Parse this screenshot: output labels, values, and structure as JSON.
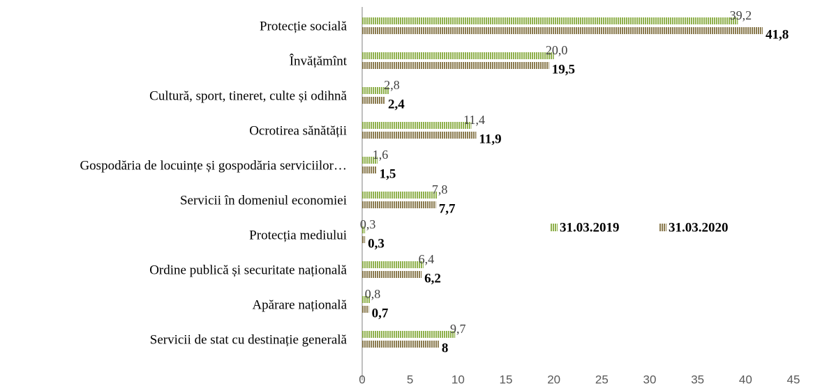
{
  "chart_data": {
    "type": "bar",
    "orientation": "horizontal",
    "categories": [
      "Protecție socială",
      "Învățămînt",
      "Cultură, sport, tineret, culte și odihnă",
      "Ocrotirea sănătății",
      "Gospodăria de locuințe și gospodăria serviciilor…",
      "Servicii în domeniul economiei",
      "Protecția mediului",
      "Ordine publică și securitate națională",
      "Apărare națională",
      "Servicii de stat cu destinație generală"
    ],
    "series": [
      {
        "name": "31.03.2019",
        "color": "#8fb04c",
        "values": [
          39.2,
          20.0,
          2.8,
          11.4,
          1.6,
          7.8,
          0.3,
          6.4,
          0.8,
          9.7
        ],
        "value_labels": [
          "39,2",
          "20,0",
          "2,8",
          "11,4",
          "1,6",
          "7,8",
          "0,3",
          "6,4",
          "0,8",
          "9,7"
        ]
      },
      {
        "name": "31.03.2020",
        "color": "#8a7a4e",
        "values": [
          41.8,
          19.5,
          2.4,
          11.9,
          1.5,
          7.7,
          0.3,
          6.2,
          0.7,
          8
        ],
        "value_labels": [
          "41,8",
          "19,5",
          "2,4",
          "11,9",
          "1,5",
          "7,7",
          "0,3",
          "6,2",
          "0,7",
          "8"
        ]
      }
    ],
    "xlim": [
      0,
      45
    ],
    "xticks": [
      0,
      5,
      10,
      15,
      20,
      25,
      30,
      35,
      40,
      45
    ],
    "legend": "right"
  }
}
